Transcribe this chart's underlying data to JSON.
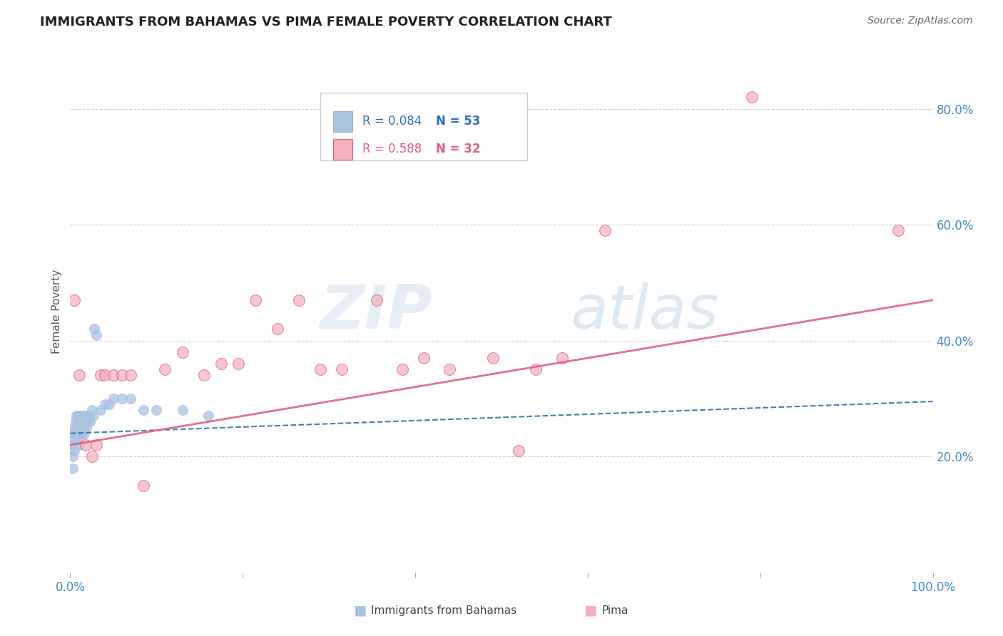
{
  "title": "IMMIGRANTS FROM BAHAMAS VS PIMA FEMALE POVERTY CORRELATION CHART",
  "source": "Source: ZipAtlas.com",
  "ylabel": "Female Poverty",
  "xlim": [
    0.0,
    1.0
  ],
  "ylim": [
    0.0,
    0.9
  ],
  "xtick_positions": [
    0.0,
    0.2,
    0.4,
    0.6,
    0.8,
    1.0
  ],
  "xticklabels": [
    "0.0%",
    "",
    "",
    "",
    "",
    "100.0%"
  ],
  "ytick_positions": [
    0.2,
    0.4,
    0.6,
    0.8
  ],
  "ytick_labels": [
    "20.0%",
    "40.0%",
    "60.0%",
    "80.0%"
  ],
  "legend_r_blue": "R = 0.084",
  "legend_n_blue": "N = 53",
  "legend_r_pink": "R = 0.588",
  "legend_n_pink": "N = 32",
  "blue_scatter_color": "#aac4e0",
  "blue_edge_color": "#aac4e0",
  "blue_line_color": "#3070b0",
  "pink_scatter_color": "#f4b0bc",
  "pink_edge_color": "#e06080",
  "pink_line_color": "#e06080",
  "blue_scatter_x": [
    0.003,
    0.003,
    0.003,
    0.003,
    0.004,
    0.005,
    0.005,
    0.006,
    0.006,
    0.007,
    0.007,
    0.008,
    0.008,
    0.009,
    0.009,
    0.009,
    0.01,
    0.01,
    0.01,
    0.01,
    0.011,
    0.011,
    0.012,
    0.012,
    0.013,
    0.013,
    0.014,
    0.014,
    0.015,
    0.015,
    0.016,
    0.016,
    0.017,
    0.018,
    0.019,
    0.02,
    0.021,
    0.022,
    0.023,
    0.025,
    0.027,
    0.028,
    0.03,
    0.035,
    0.04,
    0.045,
    0.05,
    0.06,
    0.07,
    0.085,
    0.1,
    0.13,
    0.16
  ],
  "blue_scatter_y": [
    0.24,
    0.22,
    0.2,
    0.18,
    0.25,
    0.23,
    0.21,
    0.26,
    0.24,
    0.27,
    0.25,
    0.26,
    0.24,
    0.27,
    0.25,
    0.23,
    0.26,
    0.25,
    0.24,
    0.22,
    0.27,
    0.25,
    0.26,
    0.24,
    0.27,
    0.25,
    0.26,
    0.24,
    0.27,
    0.25,
    0.26,
    0.24,
    0.27,
    0.26,
    0.25,
    0.27,
    0.26,
    0.27,
    0.26,
    0.28,
    0.27,
    0.42,
    0.41,
    0.28,
    0.29,
    0.29,
    0.3,
    0.3,
    0.3,
    0.28,
    0.28,
    0.28,
    0.27
  ],
  "pink_scatter_x": [
    0.005,
    0.01,
    0.018,
    0.025,
    0.03,
    0.035,
    0.04,
    0.05,
    0.06,
    0.07,
    0.085,
    0.11,
    0.13,
    0.155,
    0.175,
    0.195,
    0.215,
    0.24,
    0.265,
    0.29,
    0.315,
    0.355,
    0.385,
    0.41,
    0.44,
    0.49,
    0.52,
    0.54,
    0.57,
    0.62,
    0.79,
    0.96
  ],
  "pink_scatter_y": [
    0.47,
    0.34,
    0.22,
    0.2,
    0.22,
    0.34,
    0.34,
    0.34,
    0.34,
    0.34,
    0.15,
    0.35,
    0.38,
    0.34,
    0.36,
    0.36,
    0.47,
    0.42,
    0.47,
    0.35,
    0.35,
    0.47,
    0.35,
    0.37,
    0.35,
    0.37,
    0.21,
    0.35,
    0.37,
    0.59,
    0.82,
    0.59
  ],
  "blue_trend_x0": 0.0,
  "blue_trend_x1": 1.0,
  "blue_trend_y0": 0.24,
  "blue_trend_y1": 0.295,
  "pink_trend_x0": 0.0,
  "pink_trend_x1": 1.0,
  "pink_trend_y0": 0.22,
  "pink_trend_y1": 0.47,
  "background_color": "#ffffff",
  "grid_color": "#cccccc",
  "watermark_zip": "ZIP",
  "watermark_atlas": "atlas",
  "bottom_legend_blue_label": "Immigrants from Bahamas",
  "bottom_legend_pink_label": "Pima"
}
